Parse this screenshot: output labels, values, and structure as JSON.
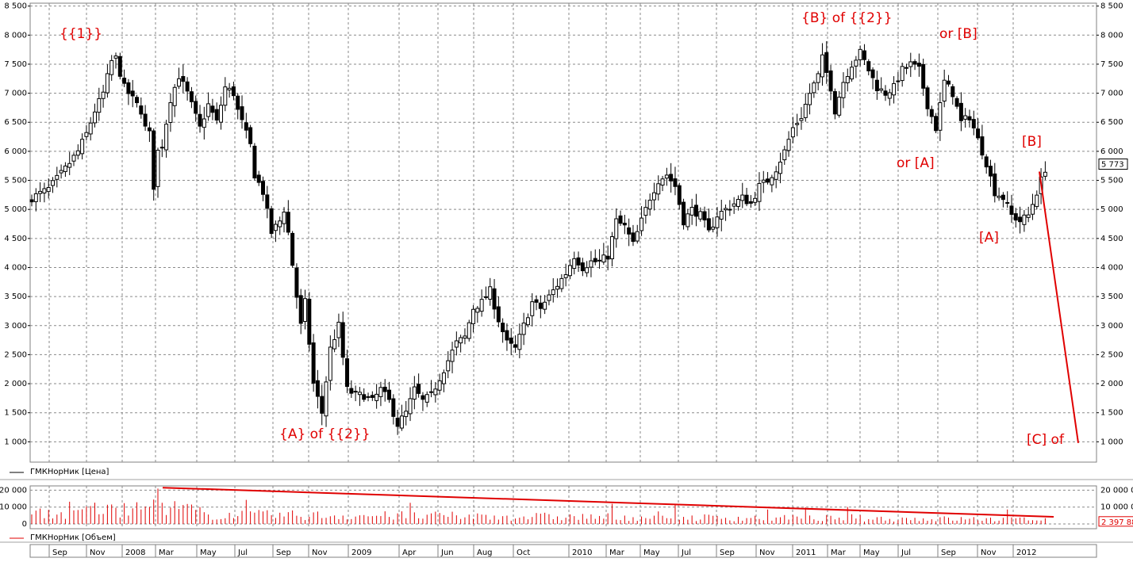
{
  "chart_data": [
    {
      "type": "candlestick",
      "y_axis": {
        "ticks": [
          "8 500",
          "8 000",
          "7 500",
          "7 000",
          "6 500",
          "6 000",
          "5 500",
          "5 000",
          "4 500",
          "4 000",
          "3 500",
          "3 000",
          "2 500",
          "2 000",
          "1 500",
          "1 000"
        ],
        "tick_values": [
          8500,
          8000,
          7500,
          7000,
          6500,
          6000,
          5500,
          5000,
          4500,
          4000,
          3500,
          3000,
          2500,
          2000,
          1500,
          1000
        ],
        "range": [
          650,
          8550
        ]
      },
      "last_value_label": "5 773",
      "last_value": 5773,
      "legend": "ГМКНорНик [Цена]",
      "grid": true,
      "close_points": [
        [
          0,
          5200
        ],
        [
          4,
          5350
        ],
        [
          8,
          5700
        ],
        [
          11,
          6000
        ],
        [
          13,
          6300
        ],
        [
          15,
          6700
        ],
        [
          17,
          7000
        ],
        [
          19,
          7550
        ],
        [
          20,
          7600
        ],
        [
          22,
          7100
        ],
        [
          24,
          6900
        ],
        [
          26,
          6700
        ],
        [
          27,
          6400
        ],
        [
          28,
          6300
        ],
        [
          29,
          5400
        ],
        [
          30,
          6000
        ],
        [
          31,
          6100
        ],
        [
          33,
          6900
        ],
        [
          35,
          7300
        ],
        [
          37,
          7000
        ],
        [
          38,
          6800
        ],
        [
          40,
          6400
        ],
        [
          42,
          6800
        ],
        [
          44,
          6500
        ],
        [
          46,
          7100
        ],
        [
          48,
          7000
        ],
        [
          49,
          6700
        ],
        [
          50,
          6500
        ],
        [
          52,
          6100
        ],
        [
          53,
          5600
        ],
        [
          55,
          5300
        ],
        [
          57,
          4600
        ],
        [
          59,
          4800
        ],
        [
          60,
          5000
        ],
        [
          61,
          4600
        ],
        [
          63,
          3500
        ],
        [
          64,
          3000
        ],
        [
          65,
          3400
        ],
        [
          67,
          2000
        ],
        [
          69,
          1500
        ],
        [
          71,
          2600
        ],
        [
          73,
          3000
        ],
        [
          75,
          1900
        ],
        [
          77,
          1800
        ],
        [
          79,
          1800
        ],
        [
          81,
          1700
        ],
        [
          83,
          1900
        ],
        [
          85,
          1700
        ],
        [
          87,
          1300
        ],
        [
          89,
          1500
        ],
        [
          91,
          1900
        ],
        [
          93,
          1700
        ],
        [
          95,
          1800
        ],
        [
          97,
          2100
        ],
        [
          99,
          2400
        ],
        [
          101,
          2700
        ],
        [
          103,
          2800
        ],
        [
          105,
          3300
        ],
        [
          107,
          3400
        ],
        [
          109,
          3600
        ],
        [
          111,
          3100
        ],
        [
          113,
          2700
        ],
        [
          115,
          2600
        ],
        [
          117,
          3000
        ],
        [
          119,
          3400
        ],
        [
          121,
          3300
        ],
        [
          123,
          3500
        ],
        [
          125,
          3700
        ],
        [
          127,
          3900
        ],
        [
          129,
          4200
        ],
        [
          131,
          4000
        ],
        [
          133,
          4100
        ],
        [
          135,
          4100
        ],
        [
          137,
          4200
        ],
        [
          139,
          4800
        ],
        [
          141,
          4700
        ],
        [
          143,
          4400
        ],
        [
          145,
          4800
        ],
        [
          147,
          5200
        ],
        [
          149,
          5500
        ],
        [
          151,
          5600
        ],
        [
          153,
          5400
        ],
        [
          155,
          4800
        ],
        [
          157,
          5000
        ],
        [
          159,
          4900
        ],
        [
          161,
          4600
        ],
        [
          163,
          4900
        ],
        [
          165,
          5000
        ],
        [
          167,
          5100
        ],
        [
          169,
          5200
        ],
        [
          171,
          5100
        ],
        [
          173,
          5400
        ],
        [
          175,
          5500
        ],
        [
          177,
          5700
        ],
        [
          179,
          6000
        ],
        [
          181,
          6400
        ],
        [
          183,
          6600
        ],
        [
          185,
          7000
        ],
        [
          187,
          7300
        ],
        [
          188,
          7600
        ],
        [
          190,
          7100
        ],
        [
          191,
          6700
        ],
        [
          193,
          7200
        ],
        [
          195,
          7500
        ],
        [
          197,
          7700
        ],
        [
          199,
          7400
        ],
        [
          201,
          7100
        ],
        [
          203,
          7000
        ],
        [
          205,
          7100
        ],
        [
          207,
          7400
        ],
        [
          209,
          7500
        ],
        [
          211,
          7400
        ],
        [
          213,
          6800
        ],
        [
          215,
          6400
        ],
        [
          217,
          7200
        ],
        [
          219,
          7000
        ],
        [
          221,
          6500
        ],
        [
          223,
          6600
        ],
        [
          225,
          6200
        ],
        [
          227,
          5800
        ],
        [
          229,
          5300
        ],
        [
          231,
          5200
        ],
        [
          233,
          4900
        ],
        [
          235,
          4800
        ],
        [
          237,
          4900
        ],
        [
          239,
          5300
        ],
        [
          241,
          5700
        ]
      ],
      "annotations": [
        "{{1}}",
        "{A} of {{2}}",
        "{B} of {{2}}",
        "or [B]",
        "or [A]",
        "[B]",
        "[A]",
        "[C] of"
      ],
      "projection": {
        "from": 5650,
        "to": 980
      }
    },
    {
      "type": "bar",
      "y_axis": {
        "ticks_left": [
          "20 000",
          "10 000",
          "0"
        ],
        "ticks_right": [
          "20 000 0",
          "10 000 0",
          "0"
        ],
        "tick_values": [
          20000,
          10000,
          0
        ],
        "range": [
          0,
          23000
        ]
      },
      "last_value_label": "2 397 88",
      "legend": "ГМКНорНик [Объем]",
      "trend_line": {
        "from": 21500,
        "to": 4200
      }
    }
  ],
  "x_axis": {
    "labels": [
      "Sep",
      "Nov",
      "2008",
      "Mar",
      "May",
      "Jul",
      "Sep",
      "Nov",
      "2009",
      "Apr",
      "Jun",
      "Aug",
      "Oct",
      "2010",
      "Mar",
      "May",
      "Jul",
      "Sep",
      "Nov",
      "2011",
      "Mar",
      "May",
      "Jul",
      "Sep",
      "Nov",
      "2012"
    ]
  }
}
